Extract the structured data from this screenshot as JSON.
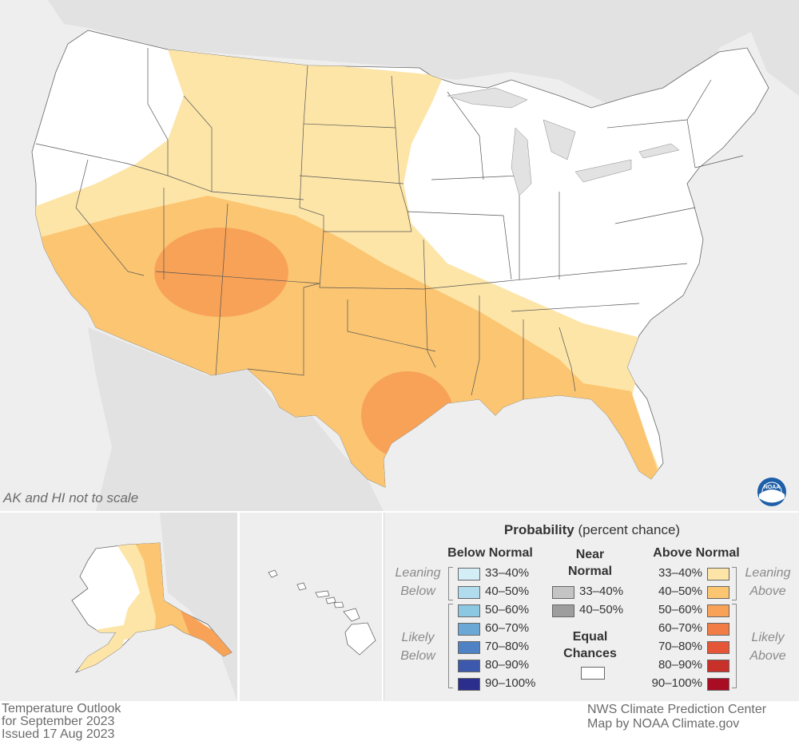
{
  "map": {
    "note": "AK and HI not to scale",
    "title_lines": [
      "Temperature Outlook",
      "for September 2023",
      "Issued 17 Aug 2023"
    ],
    "credit_lines": [
      "NWS Climate Prediction Center",
      "Map by NOAA Climate.gov"
    ],
    "logo_text": "NOAA"
  },
  "legend": {
    "title_bold": "Probability",
    "title_rest": "(percent chance)",
    "below_normal": {
      "heading": "Below Normal",
      "leaning_label": [
        "Leaning",
        "Below"
      ],
      "likely_label": [
        "Likely",
        "Below"
      ],
      "items": [
        {
          "label": "33–40%",
          "color": "#d4eef7"
        },
        {
          "label": "40–50%",
          "color": "#b0dced"
        },
        {
          "label": "50–60%",
          "color": "#8cc8e2"
        },
        {
          "label": "60–70%",
          "color": "#6ba8d6"
        },
        {
          "label": "70–80%",
          "color": "#4f82c4"
        },
        {
          "label": "80–90%",
          "color": "#3d59ad"
        },
        {
          "label": "90–100%",
          "color": "#2b2e8c"
        }
      ]
    },
    "near_normal": {
      "heading": [
        "Near",
        "Normal"
      ],
      "items": [
        {
          "label": "33–40%",
          "color": "#c4c4c4"
        },
        {
          "label": "40–50%",
          "color": "#9d9d9d"
        }
      ],
      "equal_chances": [
        "Equal",
        "Chances"
      ],
      "equal_color": "#ffffff"
    },
    "above_normal": {
      "heading": "Above Normal",
      "leaning_label": [
        "Leaning",
        "Above"
      ],
      "likely_label": [
        "Likely",
        "Above"
      ],
      "items": [
        {
          "label": "33–40%",
          "color": "#fde5a8"
        },
        {
          "label": "40–50%",
          "color": "#fbc571"
        },
        {
          "label": "50–60%",
          "color": "#f8a257"
        },
        {
          "label": "60–70%",
          "color": "#f27c46"
        },
        {
          "label": "70–80%",
          "color": "#e45637"
        },
        {
          "label": "80–90%",
          "color": "#c8302a"
        },
        {
          "label": "90–100%",
          "color": "#a80d24"
        }
      ]
    }
  }
}
